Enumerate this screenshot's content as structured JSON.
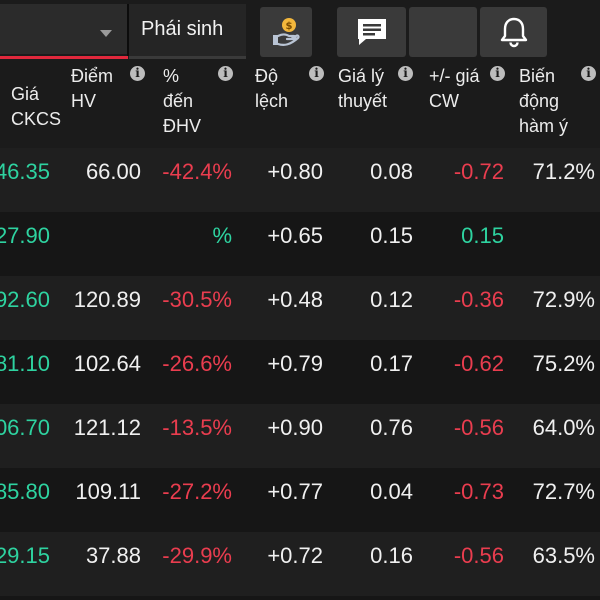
{
  "topbar": {
    "dropdown_value": "",
    "tab_label": "Phái sinh",
    "icons": [
      "hand-coin-icon",
      "chat-icon",
      "blank-button",
      "bell-icon"
    ]
  },
  "colors": {
    "up": "#2ed3a0",
    "down": "#ea3d4f",
    "accent": "#e0283c"
  },
  "table": {
    "columns": [
      {
        "label": "Giá\nCKCS",
        "info": false
      },
      {
        "label": "Điểm\nHV",
        "info": true
      },
      {
        "label": "%\nđến\nĐHV",
        "info": true
      },
      {
        "label": "Độ\nlệch",
        "info": true
      },
      {
        "label": "Giá lý\nthuyết",
        "info": true
      },
      {
        "label": "+/- giá\nCW",
        "info": true
      },
      {
        "label": "Biến\nđộng\nhàm ý",
        "info": true
      }
    ],
    "info_glyph": "i",
    "rows": [
      {
        "price": "46.35",
        "hv": "66.00",
        "pct": "-42.4%",
        "pct_dir": "down",
        "lech": "+0.80",
        "lythuyet": "0.08",
        "cw": "-0.72",
        "cw_dir": "down",
        "bd": "71.2%"
      },
      {
        "price": "27.90",
        "hv": "",
        "pct": "%",
        "pct_dir": "up",
        "lech": "+0.65",
        "lythuyet": "0.15",
        "cw": "0.15",
        "cw_dir": "up",
        "bd": ""
      },
      {
        "price": "92.60",
        "hv": "120.89",
        "pct": "-30.5%",
        "pct_dir": "down",
        "lech": "+0.48",
        "lythuyet": "0.12",
        "cw": "-0.36",
        "cw_dir": "down",
        "bd": "72.9%"
      },
      {
        "price": "81.10",
        "hv": "102.64",
        "pct": "-26.6%",
        "pct_dir": "down",
        "lech": "+0.79",
        "lythuyet": "0.17",
        "cw": "-0.62",
        "cw_dir": "down",
        "bd": "75.2%"
      },
      {
        "price": "06.70",
        "hv": "121.12",
        "pct": "-13.5%",
        "pct_dir": "down",
        "lech": "+0.90",
        "lythuyet": "0.76",
        "cw": "-0.56",
        "cw_dir": "down",
        "bd": "64.0%"
      },
      {
        "price": "85.80",
        "hv": "109.11",
        "pct": "-27.2%",
        "pct_dir": "down",
        "lech": "+0.77",
        "lythuyet": "0.04",
        "cw": "-0.73",
        "cw_dir": "down",
        "bd": "72.7%"
      },
      {
        "price": "29.15",
        "hv": "37.88",
        "pct": "-29.9%",
        "pct_dir": "down",
        "lech": "+0.72",
        "lythuyet": "0.16",
        "cw": "-0.56",
        "cw_dir": "down",
        "bd": "63.5%"
      }
    ]
  }
}
